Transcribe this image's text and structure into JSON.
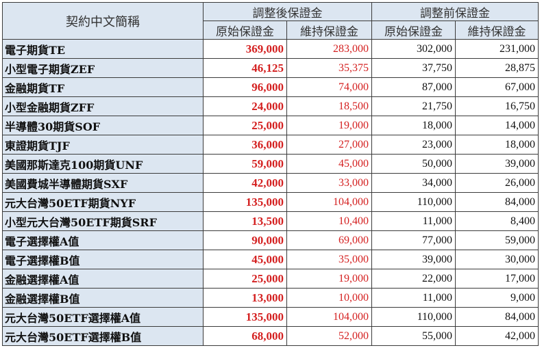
{
  "colors": {
    "header_bg": "#dce6f1",
    "name_bg": "#dce6f1",
    "adjusted_value_color": "#d41f1f",
    "previous_value_color": "#111111",
    "border": "#3a3a3a"
  },
  "table": {
    "header": {
      "contract_name": "契約中文簡稱",
      "adjusted_group": "調整後保證金",
      "previous_group": "調整前保證金",
      "initial_margin": "原始保證金",
      "maintenance_margin": "維持保證金"
    },
    "rows": [
      {
        "name": "電子期貨TE",
        "new_initial": "369,000",
        "new_maintenance": "283,000",
        "old_initial": "302,000",
        "old_maintenance": "231,000"
      },
      {
        "name": "小型電子期貨ZEF",
        "new_initial": "46,125",
        "new_maintenance": "35,375",
        "old_initial": "37,750",
        "old_maintenance": "28,875"
      },
      {
        "name": "金融期貨TF",
        "new_initial": "96,000",
        "new_maintenance": "74,000",
        "old_initial": "87,000",
        "old_maintenance": "67,000"
      },
      {
        "name": "小型金融期貨ZFF",
        "new_initial": "24,000",
        "new_maintenance": "18,500",
        "old_initial": "21,750",
        "old_maintenance": "16,750"
      },
      {
        "name": "半導體30期貨SOF",
        "new_initial": "25,000",
        "new_maintenance": "19,000",
        "old_initial": "18,000",
        "old_maintenance": "14,000"
      },
      {
        "name": "東證期貨TJF",
        "new_initial": "36,000",
        "new_maintenance": "27,000",
        "old_initial": "23,000",
        "old_maintenance": "18,000"
      },
      {
        "name": "美國那斯達克100期貨UNF",
        "new_initial": "59,000",
        "new_maintenance": "45,000",
        "old_initial": "50,000",
        "old_maintenance": "39,000"
      },
      {
        "name": "美國費城半導體期貨SXF",
        "new_initial": "42,000",
        "new_maintenance": "33,000",
        "old_initial": "34,000",
        "old_maintenance": "26,000"
      },
      {
        "name": "元大台灣50ETF期貨NYF",
        "new_initial": "135,000",
        "new_maintenance": "104,000",
        "old_initial": "110,000",
        "old_maintenance": "84,000"
      },
      {
        "name": "小型元大台灣50ETF期貨SRF",
        "new_initial": "13,500",
        "new_maintenance": "10,400",
        "old_initial": "11,000",
        "old_maintenance": "8,400"
      },
      {
        "name": "電子選擇權A值",
        "new_initial": "90,000",
        "new_maintenance": "69,000",
        "old_initial": "77,000",
        "old_maintenance": "59,000"
      },
      {
        "name": "電子選擇權B值",
        "new_initial": "45,000",
        "new_maintenance": "35,000",
        "old_initial": "39,000",
        "old_maintenance": "30,000"
      },
      {
        "name": "金融選擇權A值",
        "new_initial": "25,000",
        "new_maintenance": "19,000",
        "old_initial": "22,000",
        "old_maintenance": "17,000"
      },
      {
        "name": "金融選擇權B值",
        "new_initial": "13,000",
        "new_maintenance": "10,000",
        "old_initial": "11,000",
        "old_maintenance": "9,000"
      },
      {
        "name": "元大台灣50ETF選擇權A值",
        "new_initial": "135,000",
        "new_maintenance": "104,000",
        "old_initial": "110,000",
        "old_maintenance": "84,000"
      },
      {
        "name": "元大台灣50ETF選擇權B值",
        "new_initial": "68,000",
        "new_maintenance": "52,000",
        "old_initial": "55,000",
        "old_maintenance": "42,000"
      }
    ]
  }
}
